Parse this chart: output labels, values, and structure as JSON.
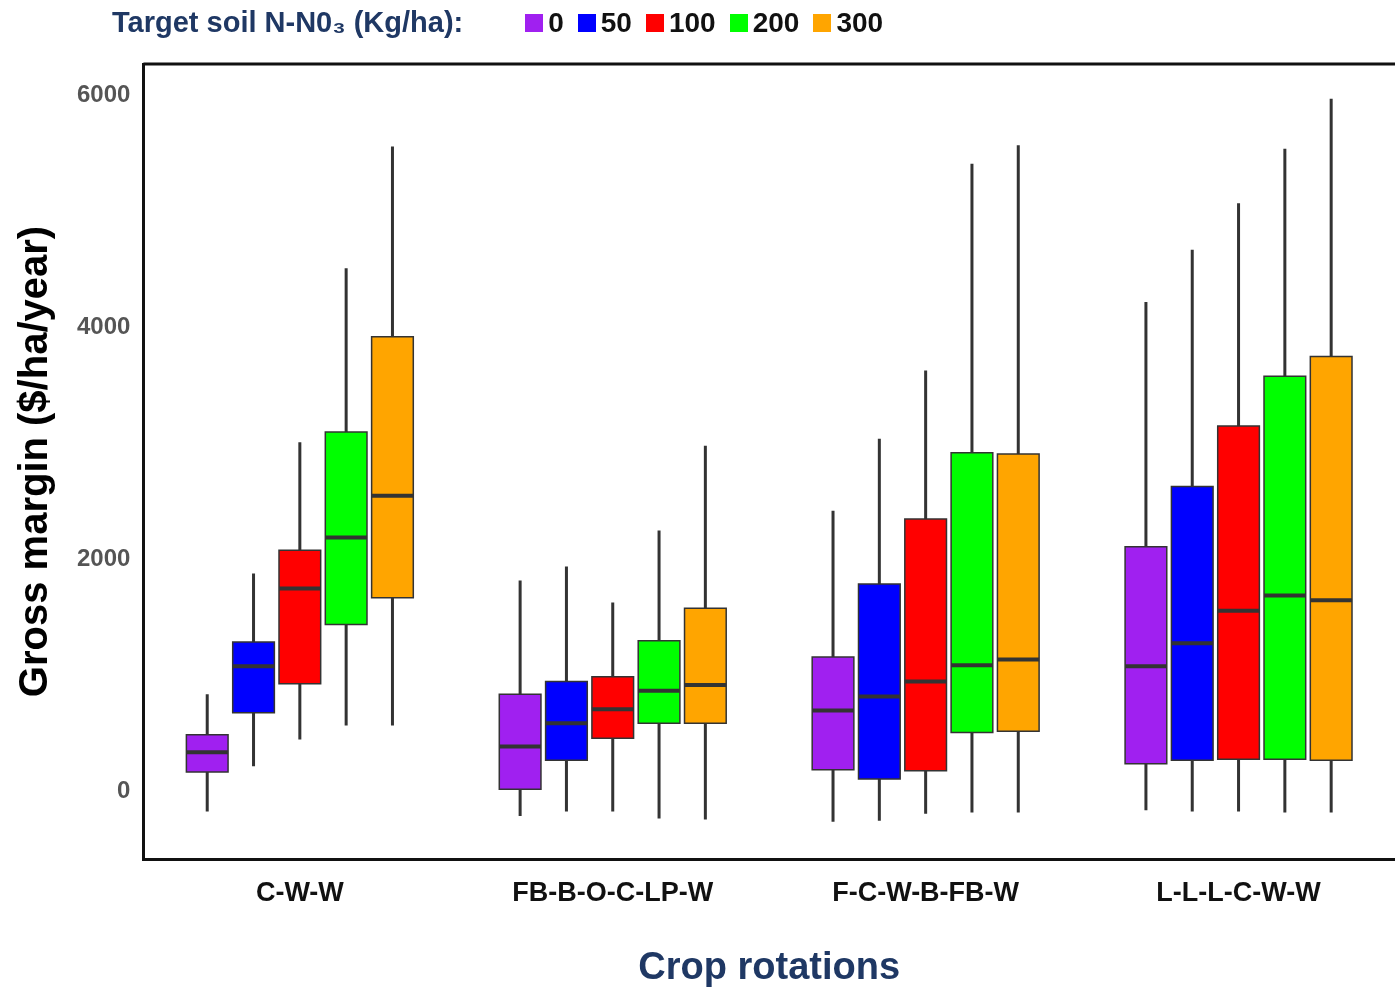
{
  "chart_data": {
    "type": "box",
    "xlabel": "Crop rotations",
    "ylabel": "Gross margin ($/ha/year)",
    "legend_title": "Target soil N-N0₃ (Kg/ha):",
    "legend": "top",
    "categories": [
      "C-W-W",
      "FB-B-O-C-LP-W",
      "F-C-W-B-FB-W",
      "L-L-L-C-W-W"
    ],
    "ylim": [
      -580,
      6270
    ],
    "yticks": [
      0,
      2000,
      4000,
      6000
    ],
    "series": [
      {
        "name": "0",
        "color": "#a020f0",
        "boxes": [
          {
            "low": -170,
            "q1": 170,
            "median": 340,
            "q3": 490,
            "high": 840
          },
          {
            "low": -210,
            "q1": 20,
            "median": 390,
            "q3": 840,
            "high": 1820
          },
          {
            "low": -260,
            "q1": 190,
            "median": 700,
            "q3": 1160,
            "high": 2420
          },
          {
            "low": -160,
            "q1": 240,
            "median": 1080,
            "q3": 2110,
            "high": 4220
          }
        ]
      },
      {
        "name": "50",
        "color": "#0000ff",
        "boxes": [
          {
            "low": 220,
            "q1": 680,
            "median": 1080,
            "q3": 1290,
            "high": 1880
          },
          {
            "low": -170,
            "q1": 270,
            "median": 590,
            "q3": 950,
            "high": 1940
          },
          {
            "low": -250,
            "q1": 110,
            "median": 820,
            "q3": 1790,
            "high": 3040
          },
          {
            "low": -170,
            "q1": 270,
            "median": 1280,
            "q3": 2630,
            "high": 4670
          }
        ]
      },
      {
        "name": "100",
        "color": "#ff0000",
        "boxes": [
          {
            "low": 450,
            "q1": 930,
            "median": 1750,
            "q3": 2080,
            "high": 3010
          },
          {
            "low": -170,
            "q1": 460,
            "median": 710,
            "q3": 990,
            "high": 1630
          },
          {
            "low": -190,
            "q1": 180,
            "median": 950,
            "q3": 2350,
            "high": 3630
          },
          {
            "low": -170,
            "q1": 280,
            "median": 1560,
            "q3": 3150,
            "high": 5070
          }
        ]
      },
      {
        "name": "200",
        "color": "#00ff00",
        "boxes": [
          {
            "low": 570,
            "q1": 1440,
            "median": 2190,
            "q3": 3100,
            "high": 4510
          },
          {
            "low": -230,
            "q1": 590,
            "median": 870,
            "q3": 1300,
            "high": 2250
          },
          {
            "low": -180,
            "q1": 510,
            "median": 1090,
            "q3": 2920,
            "high": 5410
          },
          {
            "low": -180,
            "q1": 280,
            "median": 1690,
            "q3": 3580,
            "high": 5540
          }
        ]
      },
      {
        "name": "300",
        "color": "#ffa500",
        "boxes": [
          {
            "low": 570,
            "q1": 1670,
            "median": 2550,
            "q3": 3920,
            "high": 5560
          },
          {
            "low": -240,
            "q1": 590,
            "median": 920,
            "q3": 1580,
            "high": 2980
          },
          {
            "low": -180,
            "q1": 520,
            "median": 1140,
            "q3": 2910,
            "high": 5570
          },
          {
            "low": -180,
            "q1": 270,
            "median": 1650,
            "q3": 3750,
            "high": 5970
          }
        ]
      }
    ]
  }
}
